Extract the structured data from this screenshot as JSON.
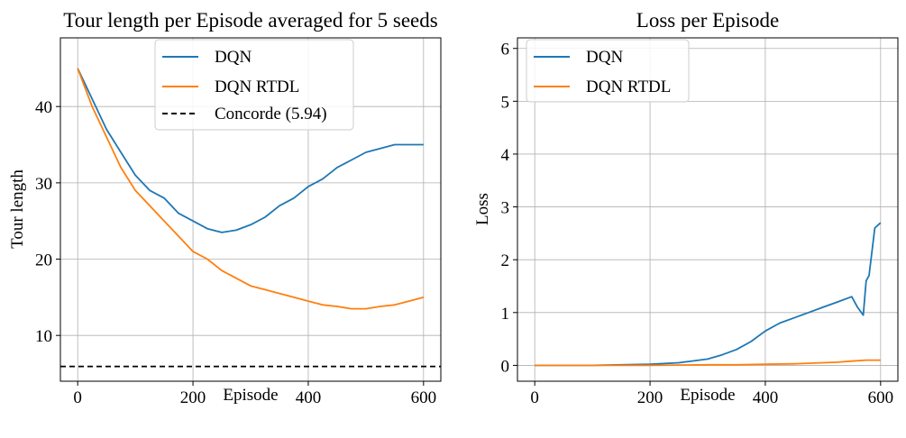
{
  "chart_data": [
    {
      "type": "line",
      "title": "Tour length per Episode averaged for 5 seeds",
      "xlabel": "Episode",
      "ylabel": "Tour length",
      "xlim": [
        -30,
        630
      ],
      "ylim": [
        4,
        49
      ],
      "xticks": [
        0,
        200,
        400,
        600
      ],
      "yticks": [
        10,
        20,
        30,
        40
      ],
      "grid": true,
      "legend_position": "top-center",
      "series": [
        {
          "name": "DQN",
          "color": "#1f77b4",
          "style": "solid",
          "x": [
            0,
            25,
            50,
            75,
            100,
            125,
            150,
            175,
            200,
            225,
            250,
            275,
            300,
            325,
            350,
            375,
            400,
            425,
            450,
            475,
            500,
            525,
            550,
            575,
            600
          ],
          "y": [
            45,
            41,
            37,
            34,
            31,
            29,
            28,
            26,
            25,
            24,
            23.5,
            23.8,
            24.5,
            25.5,
            27,
            28,
            29.5,
            30.5,
            32,
            33,
            34,
            34.5,
            35,
            35,
            35
          ]
        },
        {
          "name": "DQN RTDL",
          "color": "#ff7f0e",
          "style": "solid",
          "x": [
            0,
            25,
            50,
            75,
            100,
            125,
            150,
            175,
            200,
            225,
            250,
            275,
            300,
            325,
            350,
            375,
            400,
            425,
            450,
            475,
            500,
            525,
            550,
            575,
            600
          ],
          "y": [
            45,
            40,
            36,
            32,
            29,
            27,
            25,
            23,
            21,
            20,
            18.5,
            17.5,
            16.5,
            16,
            15.5,
            15,
            14.5,
            14,
            13.8,
            13.5,
            13.5,
            13.8,
            14,
            14.5,
            15
          ]
        },
        {
          "name": "Concorde (5.94)",
          "color": "#000000",
          "style": "dashed",
          "x": [
            -30,
            630
          ],
          "y": [
            5.94,
            5.94
          ]
        }
      ]
    },
    {
      "type": "line",
      "title": "Loss per Episode",
      "xlabel": "Episode",
      "ylabel": "Loss",
      "xlim": [
        -30,
        630
      ],
      "ylim": [
        -0.3,
        6.2
      ],
      "xticks": [
        0,
        200,
        400,
        600
      ],
      "yticks": [
        0,
        1,
        2,
        3,
        4,
        5,
        6
      ],
      "grid": true,
      "legend_position": "top-left",
      "series": [
        {
          "name": "DQN",
          "color": "#1f77b4",
          "style": "solid",
          "x": [
            0,
            100,
            200,
            250,
            300,
            325,
            350,
            375,
            400,
            425,
            450,
            475,
            500,
            525,
            550,
            560,
            570,
            575,
            580,
            590,
            600
          ],
          "y": [
            0,
            0,
            0.02,
            0.05,
            0.12,
            0.2,
            0.3,
            0.45,
            0.65,
            0.8,
            0.9,
            1.0,
            1.1,
            1.2,
            1.3,
            1.1,
            0.95,
            1.6,
            1.7,
            2.6,
            2.7
          ]
        },
        {
          "name": "DQN RTDL",
          "color": "#ff7f0e",
          "style": "solid",
          "x": [
            0,
            100,
            200,
            300,
            350,
            400,
            450,
            500,
            525,
            550,
            575,
            600
          ],
          "y": [
            0,
            0,
            0,
            0.01,
            0.01,
            0.02,
            0.03,
            0.05,
            0.06,
            0.08,
            0.1,
            0.1
          ]
        }
      ]
    }
  ]
}
